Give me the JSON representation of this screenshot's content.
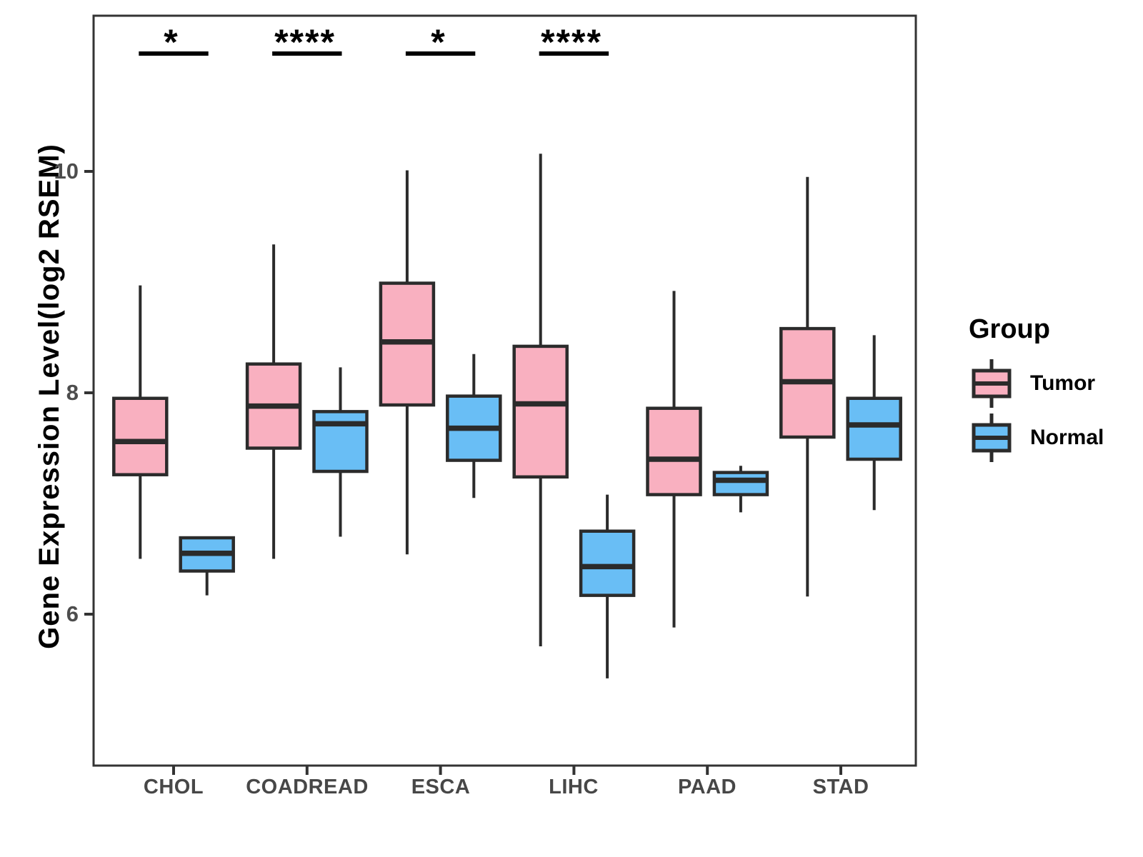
{
  "y_axis": {
    "title": "Gene Expression Level(log2 RSEM)",
    "tick_labels": [
      "10",
      "8",
      "6"
    ]
  },
  "x_axis": {
    "labels": [
      "CHOL",
      "COADREAD",
      "ESCA",
      "LIHC",
      "PAAD",
      "STAD"
    ]
  },
  "legend": {
    "title": "Group",
    "items": [
      {
        "label": "Tumor",
        "color": "#F9B0C0"
      },
      {
        "label": "Normal",
        "color": "#69BEF5"
      }
    ]
  },
  "chart_data": {
    "type": "boxplot",
    "ylabel": "Gene Expression Level(log2 RSEM)",
    "groups": [
      "CHOL",
      "COADREAD",
      "ESCA",
      "LIHC",
      "PAAD",
      "STAD"
    ],
    "y_ticks": [
      6,
      8,
      10
    ],
    "ylim": [
      4.6,
      11.4
    ],
    "grid": false,
    "legend_position": "right",
    "stroke_color": "#2b2b2b",
    "series": [
      {
        "name": "Tumor",
        "color": "#F9B0C0",
        "boxes": [
          {
            "group": "CHOL",
            "low": 6.5,
            "q1": 7.26,
            "median": 7.56,
            "q3": 7.95,
            "high": 8.97
          },
          {
            "group": "COADREAD",
            "low": 6.5,
            "q1": 7.5,
            "median": 7.88,
            "q3": 8.26,
            "high": 9.34
          },
          {
            "group": "ESCA",
            "low": 6.54,
            "q1": 7.89,
            "median": 8.46,
            "q3": 8.99,
            "high": 10.01
          },
          {
            "group": "LIHC",
            "low": 5.71,
            "q1": 7.24,
            "median": 7.9,
            "q3": 8.42,
            "high": 10.16
          },
          {
            "group": "PAAD",
            "low": 5.88,
            "q1": 7.08,
            "median": 7.4,
            "q3": 7.86,
            "high": 8.92
          },
          {
            "group": "STAD",
            "low": 6.16,
            "q1": 7.6,
            "median": 8.1,
            "q3": 8.58,
            "high": 9.95
          }
        ]
      },
      {
        "name": "Normal",
        "color": "#69BEF5",
        "boxes": [
          {
            "group": "CHOL",
            "low": 6.17,
            "q1": 6.39,
            "median": 6.55,
            "q3": 6.69,
            "high": 6.69
          },
          {
            "group": "COADREAD",
            "low": 6.7,
            "q1": 7.29,
            "median": 7.72,
            "q3": 7.83,
            "high": 8.23
          },
          {
            "group": "ESCA",
            "low": 7.05,
            "q1": 7.39,
            "median": 7.68,
            "q3": 7.97,
            "high": 8.35
          },
          {
            "group": "LIHC",
            "low": 5.42,
            "q1": 6.17,
            "median": 6.43,
            "q3": 6.75,
            "high": 7.08
          },
          {
            "group": "PAAD",
            "low": 6.92,
            "q1": 7.08,
            "median": 7.21,
            "q3": 7.28,
            "high": 7.34
          },
          {
            "group": "STAD",
            "low": 6.94,
            "q1": 7.4,
            "median": 7.71,
            "q3": 7.95,
            "high": 8.52
          }
        ]
      }
    ],
    "significance": [
      {
        "group": "CHOL",
        "label": "*"
      },
      {
        "group": "COADREAD",
        "label": "****"
      },
      {
        "group": "ESCA",
        "label": "*"
      },
      {
        "group": "LIHC",
        "label": "****"
      }
    ]
  }
}
